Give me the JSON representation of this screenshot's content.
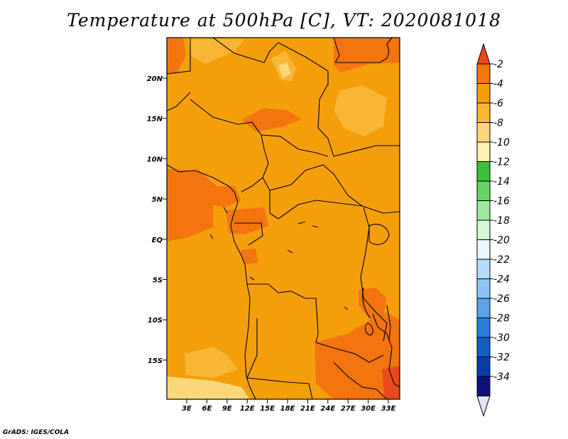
{
  "title": "Temperature at 500hPa [C], VT: 2020081018",
  "credit": "GrADS: IGES/COLA",
  "map": {
    "lat_labels": [
      "20N",
      "15N",
      "10N",
      "5N",
      "EQ",
      "5S",
      "10S",
      "15S"
    ],
    "lon_labels": [
      "3E",
      "6E",
      "9E",
      "12E",
      "15E",
      "18E",
      "21E",
      "24E",
      "27E",
      "30E",
      "33E"
    ]
  },
  "colorbar": {
    "levels": [
      "-2",
      "-4",
      "-6",
      "-8",
      "-10",
      "-12",
      "-14",
      "-16",
      "-18",
      "-20",
      "-22",
      "-24",
      "-26",
      "-28",
      "-30",
      "-32",
      "-34"
    ],
    "colors": [
      "#e84a1a",
      "#f27510",
      "#f59e0c",
      "#f9b534",
      "#fcd77a",
      "#fdf0b0",
      "#3ac03a",
      "#66d466",
      "#9ee89e",
      "#d4f7d4",
      "#e8f8fe",
      "#b2dcfa",
      "#8cc4f3",
      "#5aa4ea",
      "#2b7fdc",
      "#155ec4",
      "#0a3caa",
      "#0f1278",
      "#e2e2f4"
    ]
  }
}
